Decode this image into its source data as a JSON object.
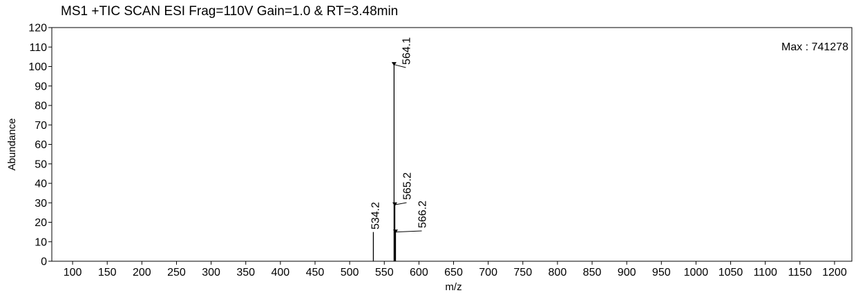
{
  "chart_data": {
    "type": "bar",
    "title": "MS1 +TIC SCAN ESI Frag=110V Gain=1.0 & RT=3.48min",
    "xlabel": "m/z",
    "ylabel": "Abundance",
    "xlim": [
      70,
      1225
    ],
    "ylim": [
      0,
      120
    ],
    "xticks": [
      100,
      150,
      200,
      250,
      300,
      350,
      400,
      450,
      500,
      550,
      600,
      650,
      700,
      750,
      800,
      850,
      900,
      950,
      1000,
      1050,
      1100,
      1150,
      1200
    ],
    "yticks": [
      0,
      10,
      20,
      30,
      40,
      50,
      60,
      70,
      80,
      90,
      100,
      110,
      120
    ],
    "max_label": "Max : 741278",
    "peaks": [
      {
        "mz": 534.2,
        "abundance": 15,
        "label": "534.2",
        "marker": false
      },
      {
        "mz": 564.1,
        "abundance": 101,
        "label": "564.1",
        "marker": true
      },
      {
        "mz": 565.2,
        "abundance": 29,
        "label": "565.2",
        "marker": true
      },
      {
        "mz": 566.2,
        "abundance": 15,
        "label": "566.2",
        "marker": true
      }
    ],
    "grid": false,
    "legend": "none"
  }
}
